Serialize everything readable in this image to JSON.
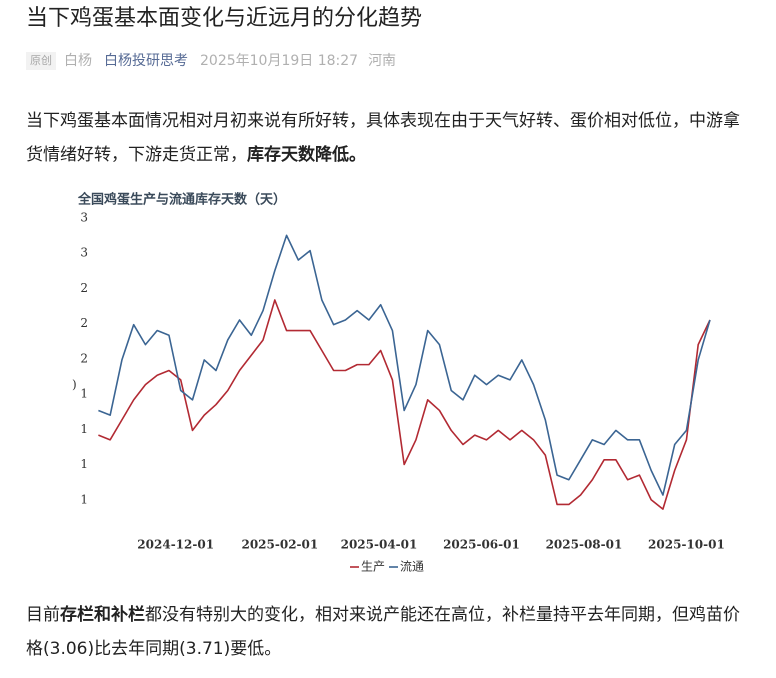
{
  "article": {
    "title": "当下鸡蛋基本面变化与近远月的分化趋势",
    "meta": {
      "tag": "原创",
      "author": "白杨",
      "account": "白杨投研思考",
      "date": "2025年10月19日 18:27",
      "location": "河南"
    },
    "paragraph1": [
      "当下鸡蛋基本面情况相对月初来说有所好转，具体表现在由于天气好转、蛋价相对低位，中游拿货情绪好转，下游走货正常，",
      "库存天数降低。"
    ],
    "paragraph2": [
      "目前",
      "存栏和补栏",
      "都没有特别大的变化，相对来说产能还在高位，补栏量持平去年同期，但鸡苗价格(3.06)比去年同期(3.71)要低。"
    ]
  },
  "chart_data": {
    "type": "line",
    "title": "全国鸡蛋生产与流通库存天数（天）",
    "y_label": ")",
    "x": [
      "2024-10-16",
      "2024-10-23",
      "2024-10-30",
      "2024-11-06",
      "2024-11-13",
      "2024-11-20",
      "2024-11-27",
      "2024-12-04",
      "2024-12-11",
      "2024-12-18",
      "2024-12-25",
      "2025-01-01",
      "2025-01-08",
      "2025-01-15",
      "2025-01-22",
      "2025-01-29",
      "2025-02-05",
      "2025-02-12",
      "2025-02-19",
      "2025-02-26",
      "2025-03-05",
      "2025-03-12",
      "2025-03-19",
      "2025-03-26",
      "2025-04-02",
      "2025-04-09",
      "2025-04-16",
      "2025-04-23",
      "2025-04-30",
      "2025-05-07",
      "2025-05-14",
      "2025-05-21",
      "2025-05-28",
      "2025-06-04",
      "2025-06-11",
      "2025-06-18",
      "2025-06-25",
      "2025-07-02",
      "2025-07-09",
      "2025-07-16",
      "2025-07-23",
      "2025-07-30",
      "2025-08-06",
      "2025-08-13",
      "2025-08-20",
      "2025-08-27",
      "2025-09-03",
      "2025-09-10",
      "2025-09-17",
      "2025-09-24",
      "2025-10-01",
      "2025-10-08",
      "2025-10-15"
    ],
    "series": [
      {
        "name": "生产",
        "color": "#b22a33",
        "values": [
          1.05,
          1.01,
          1.18,
          1.35,
          1.48,
          1.56,
          1.6,
          1.52,
          1.09,
          1.22,
          1.31,
          1.43,
          1.6,
          1.73,
          1.86,
          2.2,
          1.94,
          1.94,
          1.94,
          1.77,
          1.6,
          1.6,
          1.65,
          1.65,
          1.77,
          1.52,
          0.8,
          1.01,
          1.35,
          1.26,
          1.09,
          0.97,
          1.05,
          1.01,
          1.09,
          1.01,
          1.09,
          1.01,
          0.88,
          0.46,
          0.46,
          0.54,
          0.67,
          0.84,
          0.84,
          0.67,
          0.71,
          0.5,
          0.42,
          0.75,
          1.01,
          1.82,
          2.03
        ]
      },
      {
        "name": "流通",
        "color": "#3b6593",
        "values": [
          1.26,
          1.22,
          1.69,
          1.99,
          1.82,
          1.94,
          1.9,
          1.43,
          1.35,
          1.69,
          1.6,
          1.86,
          2.03,
          1.9,
          2.11,
          2.45,
          2.75,
          2.54,
          2.62,
          2.2,
          1.99,
          2.03,
          2.11,
          2.03,
          2.16,
          1.94,
          1.26,
          1.48,
          1.94,
          1.82,
          1.43,
          1.35,
          1.56,
          1.48,
          1.56,
          1.52,
          1.69,
          1.48,
          1.18,
          0.71,
          0.67,
          0.84,
          1.01,
          0.97,
          1.09,
          1.01,
          1.01,
          0.75,
          0.54,
          0.97,
          1.09,
          1.69,
          2.03
        ]
      }
    ],
    "xlim": [
      "2024-10-11",
      "2025-10-18"
    ],
    "xticks": [
      "2024-12-01",
      "2025-02-01",
      "2025-04-01",
      "2025-06-01",
      "2025-08-01",
      "2025-10-01"
    ],
    "ylim": [
      0.2,
      3.0
    ],
    "yticks": [
      {
        "value": 2.9,
        "label": "3"
      },
      {
        "value": 2.6,
        "label": "3"
      },
      {
        "value": 2.3,
        "label": "2"
      },
      {
        "value": 2.0,
        "label": "2"
      },
      {
        "value": 1.7,
        "label": "2"
      },
      {
        "value": 1.4,
        "label": "1"
      },
      {
        "value": 1.1,
        "label": "1"
      },
      {
        "value": 0.8,
        "label": "1"
      },
      {
        "value": 0.5,
        "label": "1"
      }
    ],
    "grid": false,
    "legend": "bottom"
  }
}
